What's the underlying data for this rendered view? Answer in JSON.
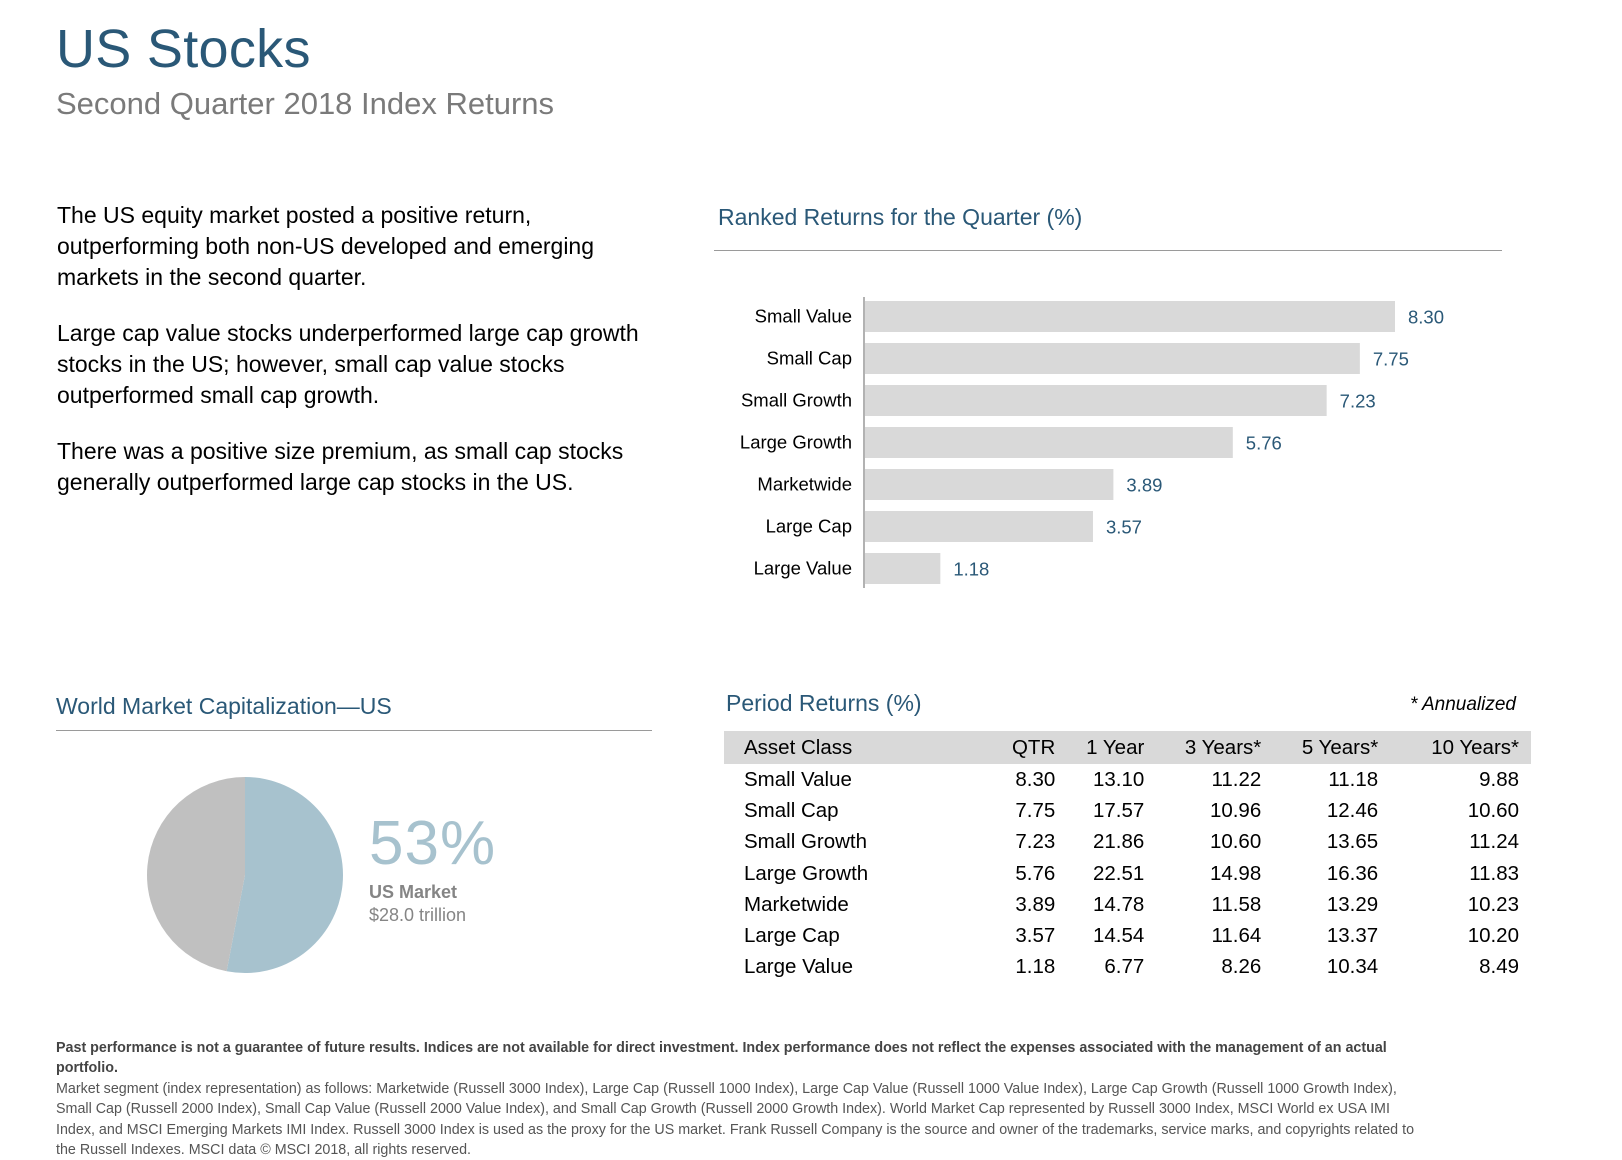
{
  "header": {
    "title": "US Stocks",
    "subtitle": "Second Quarter 2018 Index Returns"
  },
  "commentary": [
    "The US equity market posted a positive return, outperforming both non-US developed and emerging markets in the second quarter.",
    "Large cap value stocks underperformed large cap growth stocks in the US; however, small cap value stocks outperformed small cap growth.",
    "There was a positive size premium, as small cap stocks generally outperformed large cap stocks in the US."
  ],
  "ranked_section": {
    "title": "Ranked Returns for the Quarter (%)"
  },
  "world_section": {
    "title": "World Market Capitalization—US",
    "percent_label": "53%",
    "market_label": "US Market",
    "market_value": "$28.0 trillion"
  },
  "period_section": {
    "title": "Period Returns (%)",
    "note": "* Annualized",
    "columns": [
      "Asset Class",
      "QTR",
      "1 Year",
      "3 Years*",
      "5 Years*",
      "10 Years*"
    ],
    "rows": [
      [
        "Small Value",
        "8.30",
        "13.10",
        "11.22",
        "11.18",
        "9.88"
      ],
      [
        "Small Cap",
        "7.75",
        "17.57",
        "10.96",
        "12.46",
        "10.60"
      ],
      [
        "Small Growth",
        "7.23",
        "21.86",
        "10.60",
        "13.65",
        "11.24"
      ],
      [
        "Large Growth",
        "5.76",
        "22.51",
        "14.98",
        "16.36",
        "11.83"
      ],
      [
        "Marketwide",
        "3.89",
        "14.78",
        "11.58",
        "13.29",
        "10.23"
      ],
      [
        "Large Cap",
        "3.57",
        "14.54",
        "11.64",
        "13.37",
        "10.20"
      ],
      [
        "Large Value",
        "1.18",
        "6.77",
        "8.26",
        "10.34",
        "8.49"
      ]
    ]
  },
  "footnote": {
    "bold": "Past performance is not a guarantee of future results. Indices are not available for direct investment. Index performance does not reflect the expenses associated with the management of an actual portfolio.",
    "body": "Market segment (index representation) as follows: Marketwide (Russell 3000 Index), Large Cap (Russell 1000 Index), Large Cap Value (Russell 1000 Value Index), Large Cap Growth (Russell 1000 Growth Index), Small Cap (Russell 2000 Index), Small Cap Value (Russell 2000 Value Index), and Small Cap Growth (Russell 2000 Growth Index). World Market Cap represented by Russell 3000 Index, MSCI World ex USA IMI Index, and MSCI Emerging Markets IMI Index. Russell 3000 Index is used as the proxy for the US market. Frank Russell Company is the source and owner of the trademarks, service marks, and copyrights related to the Russell Indexes. MSCI data © MSCI 2018, all rights reserved."
  },
  "colors": {
    "title_blue": "#2a5877",
    "bar_gray": "#d9d9d9",
    "value_label_blue": "#2a5877",
    "pie_us": "#a7c2ce",
    "pie_rest": "#c0c0c0"
  },
  "chart_data": [
    {
      "type": "bar",
      "orientation": "horizontal",
      "title": "Ranked Returns for the Quarter (%)",
      "categories": [
        "Small Value",
        "Small Cap",
        "Small Growth",
        "Large Growth",
        "Marketwide",
        "Large Cap",
        "Large Value"
      ],
      "values": [
        8.3,
        7.75,
        7.23,
        5.76,
        3.89,
        3.57,
        1.18
      ],
      "value_labels": [
        "8.30",
        "7.75",
        "7.23",
        "5.76",
        "3.89",
        "3.57",
        "1.18"
      ],
      "xlim": [
        0,
        8.3
      ],
      "grid": false,
      "legend": "none"
    },
    {
      "type": "pie",
      "title": "World Market Capitalization—US",
      "slices": [
        {
          "value": 53,
          "color": "#a7c2ce"
        },
        {
          "value": 47,
          "color": "#c0c0c0"
        }
      ]
    }
  ]
}
